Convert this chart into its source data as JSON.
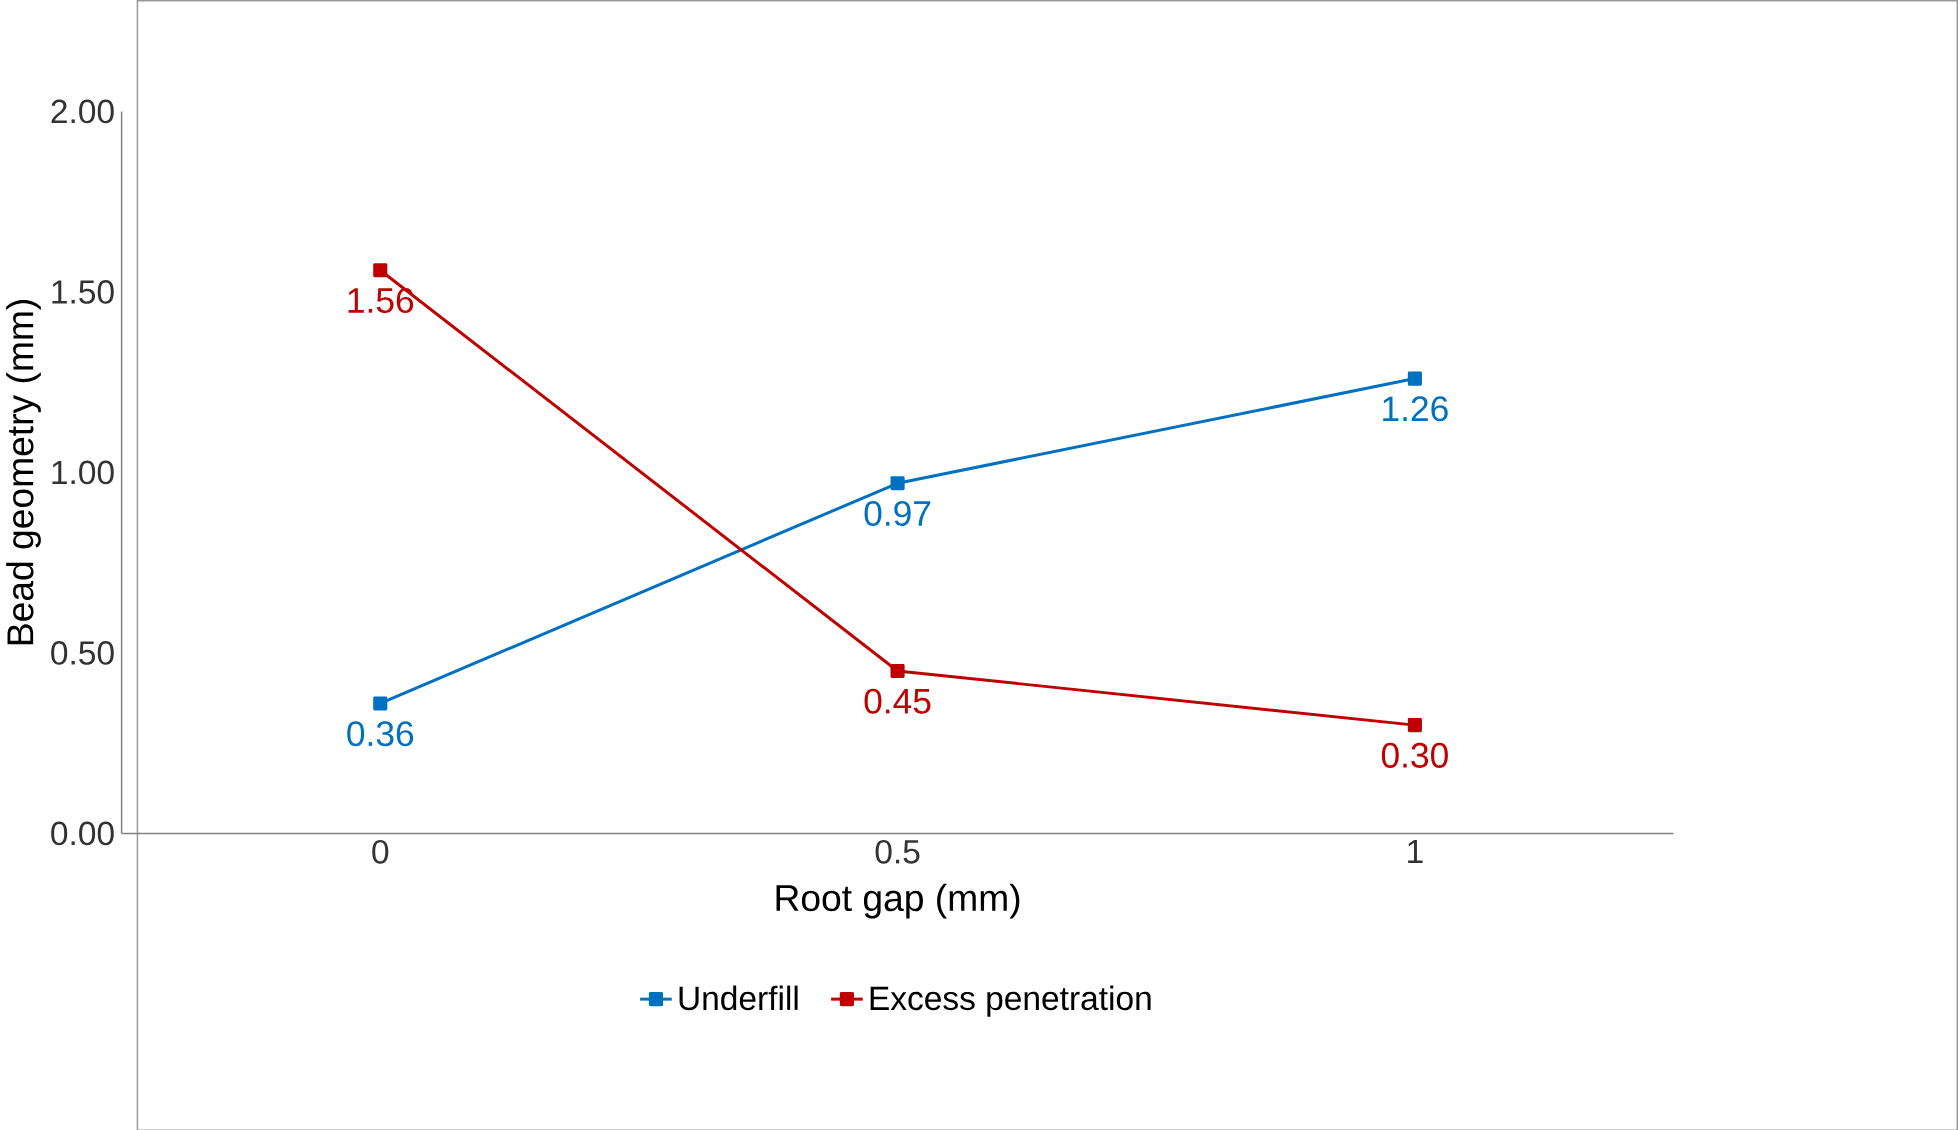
{
  "chart_data": {
    "type": "line",
    "xlabel": "Root gap (mm)",
    "ylabel": "Bead geometry (mm)",
    "categories": [
      "0",
      "0.5",
      "1"
    ],
    "ylim": [
      0,
      2
    ],
    "yticks": [
      {
        "value": 0,
        "label": "0.00"
      },
      {
        "value": 0.5,
        "label": "0.50"
      },
      {
        "value": 1,
        "label": "1.00"
      },
      {
        "value": 1.5,
        "label": "1.50"
      },
      {
        "value": 2,
        "label": "2.00"
      }
    ],
    "series": [
      {
        "name": "Underfill",
        "color": "#0070c0",
        "values": [
          0.36,
          0.97,
          1.26
        ],
        "value_labels": [
          "0.36",
          "0.97",
          "1.26"
        ]
      },
      {
        "name": "Excess penetration",
        "color": "#c00000",
        "values": [
          1.56,
          0.45,
          0.3
        ],
        "value_labels": [
          "1.56",
          "0.45",
          "0.30"
        ]
      }
    ],
    "marker": "square",
    "legend": "bottom",
    "grid": false
  }
}
